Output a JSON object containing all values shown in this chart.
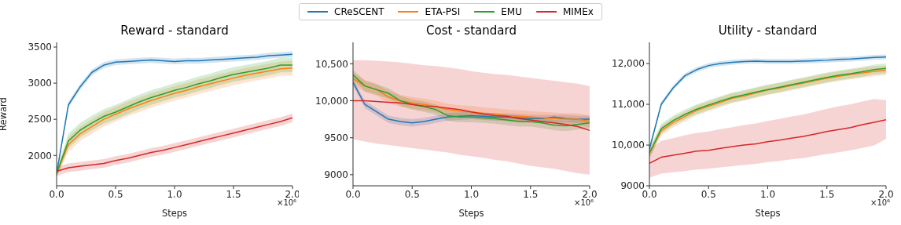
{
  "chart_data": [
    {
      "type": "line",
      "title": "Reward - standard",
      "xlabel": "Steps",
      "ylabel": "Reward",
      "annotations": [
        "×10⁶"
      ],
      "legend": "top",
      "xlim": [
        0,
        2
      ],
      "xticks": [
        {
          "value": 0,
          "label": "0.0"
        },
        {
          "value": 0.5,
          "label": "0.5"
        },
        {
          "value": 1,
          "label": "1.0"
        },
        {
          "value": 1.5,
          "label": "1.5"
        },
        {
          "value": 2,
          "label": "2.0"
        }
      ],
      "ylim": [
        1580,
        3565
      ],
      "yticks": [
        2000,
        2500,
        3000,
        3500
      ],
      "x": [
        0,
        0.1,
        0.2,
        0.3,
        0.4,
        0.5,
        0.6,
        0.7,
        0.8,
        0.9,
        1,
        1.1,
        1.2,
        1.3,
        1.4,
        1.5,
        1.6,
        1.7,
        1.8,
        1.9,
        2
      ],
      "series": [
        {
          "name": "CReSCENT",
          "color": "#1f77b4",
          "values": [
            1750,
            2700,
            2950,
            3150,
            3250,
            3290,
            3300,
            3310,
            3320,
            3310,
            3300,
            3310,
            3310,
            3320,
            3330,
            3340,
            3350,
            3360,
            3380,
            3390,
            3400
          ],
          "lower": [
            1710,
            2660,
            2910,
            3110,
            3210,
            3250,
            3260,
            3270,
            3280,
            3270,
            3260,
            3270,
            3270,
            3280,
            3290,
            3300,
            3310,
            3320,
            3340,
            3350,
            3360
          ],
          "upper": [
            1790,
            2740,
            2990,
            3190,
            3290,
            3330,
            3340,
            3350,
            3360,
            3350,
            3340,
            3350,
            3350,
            3360,
            3370,
            3380,
            3390,
            3400,
            3420,
            3430,
            3440
          ]
        },
        {
          "name": "ETA-PSI",
          "color": "#ff7f0e",
          "values": [
            1750,
            2150,
            2300,
            2400,
            2500,
            2570,
            2640,
            2700,
            2760,
            2810,
            2860,
            2900,
            2950,
            2990,
            3030,
            3070,
            3110,
            3140,
            3170,
            3200,
            3210
          ],
          "lower": [
            1700,
            2050,
            2200,
            2300,
            2400,
            2470,
            2540,
            2600,
            2660,
            2710,
            2760,
            2800,
            2850,
            2890,
            2930,
            2970,
            3010,
            3040,
            3070,
            3100,
            3110
          ],
          "upper": [
            1800,
            2250,
            2400,
            2500,
            2600,
            2670,
            2740,
            2800,
            2860,
            2910,
            2960,
            3000,
            3050,
            3090,
            3130,
            3170,
            3210,
            3240,
            3270,
            3300,
            3310
          ]
        },
        {
          "name": "EMU",
          "color": "#2ca02c",
          "values": [
            1750,
            2200,
            2350,
            2450,
            2540,
            2600,
            2670,
            2740,
            2800,
            2850,
            2900,
            2940,
            2990,
            3030,
            3080,
            3120,
            3150,
            3180,
            3210,
            3250,
            3250
          ],
          "lower": [
            1700,
            2100,
            2250,
            2350,
            2440,
            2500,
            2570,
            2640,
            2700,
            2750,
            2800,
            2840,
            2890,
            2930,
            2980,
            3020,
            3050,
            3080,
            3110,
            3150,
            3150
          ],
          "upper": [
            1800,
            2300,
            2450,
            2550,
            2640,
            2700,
            2770,
            2840,
            2900,
            2950,
            3000,
            3040,
            3090,
            3130,
            3180,
            3220,
            3250,
            3280,
            3310,
            3350,
            3350
          ]
        },
        {
          "name": "MIMEx",
          "color": "#d62728",
          "values": [
            1780,
            1830,
            1850,
            1870,
            1890,
            1930,
            1960,
            2000,
            2040,
            2070,
            2110,
            2150,
            2190,
            2230,
            2270,
            2310,
            2350,
            2390,
            2430,
            2470,
            2520
          ],
          "lower": [
            1720,
            1770,
            1790,
            1810,
            1830,
            1870,
            1900,
            1940,
            1980,
            2010,
            2050,
            2090,
            2130,
            2170,
            2210,
            2250,
            2290,
            2330,
            2370,
            2410,
            2460
          ],
          "upper": [
            1840,
            1890,
            1910,
            1930,
            1950,
            1990,
            2020,
            2060,
            2100,
            2130,
            2170,
            2210,
            2250,
            2290,
            2330,
            2370,
            2410,
            2450,
            2490,
            2530,
            2580
          ]
        }
      ]
    },
    {
      "type": "line",
      "title": "Cost - standard",
      "xlabel": "Steps",
      "annotations": [
        "×10⁶"
      ],
      "xlim": [
        0,
        2
      ],
      "xticks": [
        {
          "value": 0,
          "label": "0.0"
        },
        {
          "value": 0.5,
          "label": "0.5"
        },
        {
          "value": 1,
          "label": "1.0"
        },
        {
          "value": 1.5,
          "label": "1.5"
        },
        {
          "value": 2,
          "label": "2.0"
        }
      ],
      "ylim": [
        8850,
        10790
      ],
      "yticks": [
        9000,
        9500,
        {
          "value": 10000,
          "label": "10,000"
        },
        {
          "value": 10500,
          "label": "10,500"
        }
      ],
      "x": [
        0,
        0.1,
        0.2,
        0.3,
        0.4,
        0.5,
        0.6,
        0.7,
        0.8,
        0.9,
        1,
        1.1,
        1.2,
        1.3,
        1.4,
        1.5,
        1.6,
        1.7,
        1.8,
        1.9,
        2
      ],
      "series": [
        {
          "color": "#1f77b4",
          "values": [
            10250,
            9950,
            9850,
            9750,
            9720,
            9700,
            9720,
            9750,
            9780,
            9790,
            9800,
            9790,
            9780,
            9780,
            9770,
            9760,
            9760,
            9780,
            9760,
            9750,
            9750
          ],
          "lower": [
            10200,
            9900,
            9800,
            9700,
            9670,
            9650,
            9670,
            9700,
            9730,
            9740,
            9750,
            9740,
            9730,
            9730,
            9720,
            9710,
            9710,
            9710,
            9710,
            9700,
            9700
          ],
          "upper": [
            10300,
            10000,
            9900,
            9800,
            9770,
            9750,
            9770,
            9800,
            9830,
            9840,
            9850,
            9840,
            9830,
            9830,
            9820,
            9810,
            9810,
            9810,
            9810,
            9800,
            9800
          ]
        },
        {
          "color": "#ff7f0e",
          "values": [
            10300,
            10200,
            10150,
            10050,
            10000,
            9970,
            9950,
            9920,
            9880,
            9860,
            9850,
            9830,
            9820,
            9800,
            9790,
            9780,
            9770,
            9760,
            9750,
            9750,
            9720
          ],
          "lower": [
            10220,
            10120,
            10070,
            9970,
            9920,
            9890,
            9870,
            9840,
            9800,
            9780,
            9770,
            9750,
            9740,
            9720,
            9710,
            9700,
            9690,
            9680,
            9670,
            9670,
            9640
          ],
          "upper": [
            10380,
            10280,
            10230,
            10130,
            10080,
            10050,
            10030,
            10000,
            9960,
            9940,
            9930,
            9910,
            9900,
            9880,
            9870,
            9860,
            9850,
            9840,
            9830,
            9830,
            9800
          ]
        },
        {
          "color": "#2ca02c",
          "values": [
            10350,
            10200,
            10150,
            10100,
            10000,
            9950,
            9920,
            9880,
            9800,
            9780,
            9780,
            9770,
            9760,
            9740,
            9720,
            9720,
            9700,
            9670,
            9660,
            9680,
            9700
          ],
          "lower": [
            10280,
            10130,
            10080,
            10030,
            9930,
            9880,
            9850,
            9810,
            9730,
            9710,
            9710,
            9700,
            9690,
            9670,
            9650,
            9650,
            9630,
            9600,
            9590,
            9610,
            9630
          ],
          "upper": [
            10420,
            10270,
            10220,
            10170,
            10070,
            10020,
            9990,
            9950,
            9870,
            9850,
            9850,
            9840,
            9830,
            9810,
            9790,
            9790,
            9770,
            9740,
            9730,
            9750,
            9770
          ]
        },
        {
          "color": "#d62728",
          "values": [
            10000,
            10000,
            9990,
            9980,
            9970,
            9950,
            9930,
            9920,
            9900,
            9880,
            9850,
            9820,
            9800,
            9790,
            9760,
            9740,
            9720,
            9700,
            9680,
            9650,
            9600
          ],
          "lower": [
            9480,
            9450,
            9420,
            9400,
            9380,
            9360,
            9340,
            9320,
            9300,
            9270,
            9250,
            9230,
            9200,
            9180,
            9150,
            9120,
            9100,
            9080,
            9050,
            9020,
            9000
          ],
          "upper": [
            10550,
            10550,
            10540,
            10530,
            10520,
            10500,
            10480,
            10470,
            10450,
            10430,
            10400,
            10380,
            10360,
            10350,
            10330,
            10310,
            10290,
            10270,
            10250,
            10230,
            10200
          ]
        }
      ]
    },
    {
      "type": "line",
      "title": "Utility - standard",
      "xlabel": "Steps",
      "annotations": [
        "×10⁶"
      ],
      "xlim": [
        0,
        2
      ],
      "xticks": [
        {
          "value": 0,
          "label": "0.0"
        },
        {
          "value": 0.5,
          "label": "0.5"
        },
        {
          "value": 1,
          "label": "1.0"
        },
        {
          "value": 1.5,
          "label": "1.5"
        },
        {
          "value": 2,
          "label": "2.0"
        }
      ],
      "ylim": [
        9000,
        12520
      ],
      "yticks": [
        9000,
        {
          "value": 10000,
          "label": "10,000"
        },
        {
          "value": 11000,
          "label": "11,000"
        },
        {
          "value": 12000,
          "label": "12,000"
        }
      ],
      "x": [
        0,
        0.1,
        0.2,
        0.3,
        0.4,
        0.5,
        0.6,
        0.7,
        0.8,
        0.9,
        1,
        1.1,
        1.2,
        1.3,
        1.4,
        1.5,
        1.6,
        1.7,
        1.8,
        1.9,
        2
      ],
      "series": [
        {
          "color": "#1f77b4",
          "values": [
            9900,
            11000,
            11400,
            11700,
            11850,
            11950,
            12000,
            12030,
            12050,
            12060,
            12050,
            12050,
            12050,
            12060,
            12070,
            12080,
            12100,
            12110,
            12130,
            12150,
            12160
          ],
          "lower": [
            9840,
            10940,
            11340,
            11640,
            11790,
            11890,
            11940,
            11970,
            11990,
            12000,
            11990,
            11990,
            11990,
            12000,
            12010,
            12020,
            12040,
            12050,
            12070,
            12090,
            12100
          ],
          "upper": [
            9960,
            11060,
            11460,
            11760,
            11910,
            12010,
            12060,
            12090,
            12110,
            12120,
            12110,
            12110,
            12110,
            12120,
            12130,
            12140,
            12160,
            12170,
            12190,
            12210,
            12220
          ]
        },
        {
          "color": "#ff7f0e",
          "values": [
            9800,
            10350,
            10550,
            10700,
            10850,
            10950,
            11050,
            11150,
            11200,
            11280,
            11350,
            11400,
            11460,
            11520,
            11580,
            11640,
            11690,
            11730,
            11770,
            11810,
            11830
          ],
          "lower": [
            9680,
            10230,
            10430,
            10580,
            10730,
            10830,
            10930,
            11030,
            11080,
            11160,
            11230,
            11280,
            11340,
            11400,
            11460,
            11520,
            11570,
            11610,
            11650,
            11690,
            11710
          ],
          "upper": [
            9920,
            10470,
            10670,
            10820,
            10970,
            11070,
            11170,
            11270,
            11320,
            11400,
            11470,
            11520,
            11580,
            11640,
            11700,
            11760,
            11810,
            11850,
            11890,
            11930,
            11950
          ]
        },
        {
          "color": "#2ca02c",
          "values": [
            9800,
            10400,
            10600,
            10750,
            10880,
            10980,
            11080,
            11170,
            11230,
            11300,
            11360,
            11420,
            11480,
            11540,
            11600,
            11660,
            11710,
            11750,
            11800,
            11850,
            11880
          ],
          "lower": [
            9680,
            10280,
            10480,
            10630,
            10760,
            10860,
            10960,
            11050,
            11110,
            11180,
            11240,
            11300,
            11360,
            11420,
            11480,
            11540,
            11590,
            11630,
            11680,
            11730,
            11760
          ],
          "upper": [
            9920,
            10520,
            10720,
            10870,
            11000,
            11100,
            11200,
            11290,
            11350,
            11420,
            11480,
            11540,
            11600,
            11660,
            11720,
            11780,
            11830,
            11870,
            11920,
            11970,
            12000
          ]
        },
        {
          "color": "#d62728",
          "values": [
            9550,
            9700,
            9750,
            9800,
            9850,
            9870,
            9920,
            9960,
            10000,
            10030,
            10080,
            10120,
            10170,
            10210,
            10270,
            10330,
            10380,
            10430,
            10500,
            10560,
            10620
          ],
          "lower": [
            9200,
            9300,
            9330,
            9360,
            9400,
            9420,
            9450,
            9480,
            9510,
            9540,
            9580,
            9610,
            9650,
            9680,
            9730,
            9780,
            9820,
            9870,
            9930,
            9990,
            10150
          ],
          "upper": [
            9900,
            10100,
            10170,
            10240,
            10300,
            10330,
            10390,
            10440,
            10490,
            10530,
            10590,
            10640,
            10700,
            10750,
            10820,
            10890,
            10950,
            11000,
            11070,
            11130,
            11100
          ]
        }
      ]
    }
  ]
}
